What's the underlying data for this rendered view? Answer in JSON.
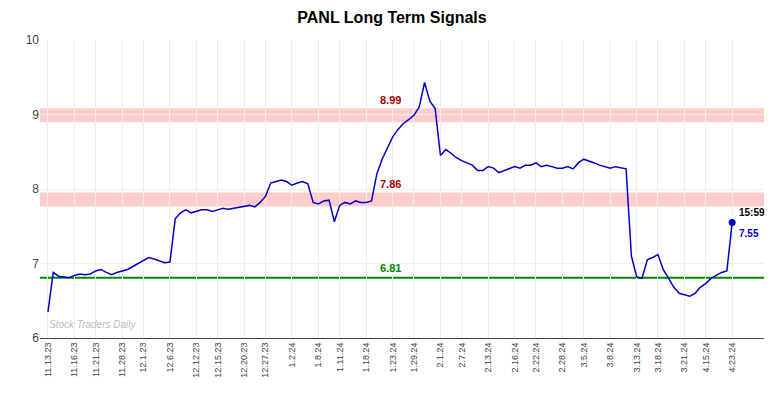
{
  "chart_data": {
    "type": "line",
    "title": "PANL Long Term Signals",
    "categories": [
      "11.13.23",
      null,
      null,
      null,
      null,
      "11.16.23",
      null,
      null,
      null,
      "11.21.23",
      null,
      null,
      null,
      null,
      "11.28.23",
      null,
      null,
      null,
      "12.1.23",
      null,
      null,
      null,
      null,
      "12.6.23",
      null,
      null,
      null,
      null,
      "12.12.23",
      null,
      null,
      null,
      "12.15.23",
      null,
      null,
      null,
      null,
      "12.20.23",
      null,
      null,
      null,
      "12.27.23",
      null,
      null,
      null,
      null,
      "1.2.24",
      null,
      null,
      null,
      null,
      "1.8.24",
      null,
      null,
      null,
      "1.11.24",
      null,
      null,
      null,
      null,
      "1.18.24",
      null,
      null,
      null,
      null,
      "1.23.24",
      null,
      null,
      null,
      "1.29.24",
      null,
      null,
      null,
      null,
      "2.1.24",
      null,
      null,
      null,
      "2.7.24",
      null,
      null,
      null,
      null,
      "2.13.24",
      null,
      null,
      null,
      null,
      "2.16.24",
      null,
      null,
      null,
      "2.22.24",
      null,
      null,
      null,
      null,
      "2.28.24",
      null,
      null,
      null,
      "3.5.24",
      null,
      null,
      null,
      null,
      "3.8.24",
      null,
      null,
      null,
      null,
      "3.13.24",
      null,
      null,
      null,
      "3.18.24",
      null,
      null,
      null,
      null,
      "3.21.24",
      null,
      null,
      null,
      "4.15.24",
      null,
      null,
      null,
      null,
      "4.23.24"
    ],
    "values": [
      6.35,
      6.88,
      6.83,
      6.82,
      6.81,
      6.84,
      6.86,
      6.85,
      6.86,
      6.9,
      6.92,
      6.88,
      6.85,
      6.88,
      6.9,
      6.92,
      6.96,
      7.0,
      7.05,
      7.08,
      7.06,
      7.03,
      7.01,
      7.02,
      7.6,
      7.68,
      7.72,
      7.68,
      7.7,
      7.72,
      7.72,
      7.7,
      7.72,
      7.74,
      7.73,
      7.74,
      7.76,
      7.76,
      7.78,
      7.76,
      7.82,
      7.9,
      8.08,
      8.1,
      8.12,
      8.1,
      8.05,
      8.08,
      8.1,
      8.07,
      7.82,
      7.8,
      7.84,
      7.85,
      7.56,
      7.78,
      7.82,
      7.8,
      7.84,
      7.82,
      7.82,
      7.84,
      8.2,
      8.4,
      8.55,
      8.7,
      8.8,
      8.88,
      8.93,
      8.99,
      9.1,
      9.43,
      9.18,
      9.08,
      8.45,
      8.53,
      8.48,
      8.42,
      8.38,
      8.35,
      8.32,
      8.25,
      8.25,
      8.3,
      8.28,
      8.22,
      8.25,
      8.28,
      8.3,
      8.28,
      8.32,
      8.32,
      8.35,
      8.3,
      8.32,
      8.3,
      8.28,
      8.28,
      8.3,
      8.27,
      8.35,
      8.4,
      8.38,
      8.35,
      8.32,
      8.3,
      8.28,
      8.3,
      8.28,
      8.27,
      7.1,
      6.82,
      6.8,
      7.05,
      7.08,
      7.12,
      6.92,
      6.8,
      6.68,
      6.6,
      6.58,
      6.56,
      6.6,
      6.68,
      6.73,
      6.8,
      6.84,
      6.88,
      6.9,
      7.55
    ],
    "color": "#0000cc",
    "ylim": [
      6,
      10
    ],
    "yticks": [
      6,
      7,
      8,
      9,
      10
    ],
    "grid": true,
    "hlines": [
      {
        "value": 8.99,
        "label": "8.99",
        "color": "#aa0000",
        "band_color": "#ffcccc"
      },
      {
        "value": 7.86,
        "label": "7.86",
        "color": "#aa0000",
        "band_color": "#ffcccc"
      },
      {
        "value": 6.81,
        "label": "6.81",
        "color": "#008800",
        "band_color": "#008800"
      }
    ],
    "last_point": {
      "time": "15:59",
      "label": "7.55",
      "color": "#0000cc"
    },
    "watermark": "Stock Traders Daily"
  }
}
